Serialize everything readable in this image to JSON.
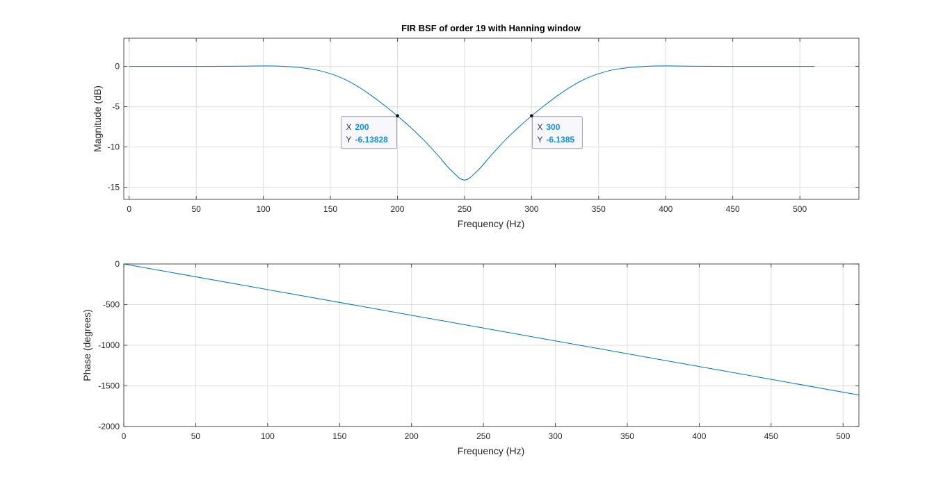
{
  "chart_data": [
    {
      "type": "line",
      "title": "FIR BSF of order 19 with Hanning window",
      "xlabel": "Frequency (Hz)",
      "ylabel": "Magnitude (dB)",
      "xlim": [
        -4,
        544
      ],
      "ylim": [
        -16.5,
        3.5
      ],
      "xticks": [
        0,
        50,
        100,
        150,
        200,
        250,
        300,
        350,
        400,
        450,
        500
      ],
      "yticks": [
        0,
        -5,
        -10,
        -15
      ],
      "grid": true,
      "color": "#0072BD",
      "series": [
        {
          "x": [
            0,
            25,
            50,
            75,
            100,
            110,
            120,
            130,
            140,
            150,
            160,
            170,
            180,
            190,
            200,
            210,
            220,
            230,
            240,
            250,
            260,
            270,
            280,
            290,
            300,
            310,
            320,
            330,
            340,
            350,
            360,
            370,
            380,
            390,
            400,
            425,
            450,
            475,
            511
          ],
          "values": [
            0,
            0,
            0,
            0.02,
            0.06,
            0.04,
            -0.05,
            -0.2,
            -0.45,
            -0.9,
            -1.55,
            -2.45,
            -3.55,
            -4.8,
            -6.14,
            -7.6,
            -9.2,
            -11.0,
            -12.9,
            -14.1,
            -12.9,
            -11.0,
            -9.2,
            -7.6,
            -6.14,
            -4.8,
            -3.55,
            -2.45,
            -1.55,
            -0.9,
            -0.45,
            -0.2,
            -0.05,
            0.04,
            0.06,
            0.02,
            0,
            0,
            0
          ]
        }
      ],
      "datatips": [
        {
          "x_label": "X",
          "x_value": "200",
          "y_label": "Y",
          "y_value": "-6.13828",
          "x": 200,
          "y": -6.13828
        },
        {
          "x_label": "X",
          "x_value": "300",
          "y_label": "Y",
          "y_value": "-6.1385",
          "x": 300,
          "y": -6.1385
        }
      ]
    },
    {
      "type": "line",
      "xlabel": "Frequency (Hz)",
      "ylabel": "Phase (degrees)",
      "xlim": [
        0,
        511
      ],
      "ylim": [
        -2000,
        0
      ],
      "xticks": [
        0,
        50,
        100,
        150,
        200,
        250,
        300,
        350,
        400,
        450,
        500
      ],
      "yticks": [
        0,
        -500,
        -1000,
        -1500,
        -2000
      ],
      "grid": true,
      "color": "#0072BD",
      "series": [
        {
          "x": [
            0,
            511
          ],
          "values": [
            0,
            -1612
          ]
        }
      ]
    }
  ],
  "datatip_colors": {
    "value": "#0E8FE0",
    "label": "#333333"
  }
}
